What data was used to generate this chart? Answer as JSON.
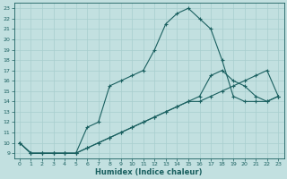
{
  "title": "",
  "xlabel": "Humidex (Indice chaleur)",
  "xlim": [
    -0.5,
    23.5
  ],
  "ylim": [
    8.5,
    23.5
  ],
  "xticks": [
    0,
    1,
    2,
    3,
    4,
    5,
    6,
    7,
    8,
    9,
    10,
    11,
    12,
    13,
    14,
    15,
    16,
    17,
    18,
    19,
    20,
    21,
    22,
    23
  ],
  "yticks": [
    9,
    10,
    11,
    12,
    13,
    14,
    15,
    16,
    17,
    18,
    19,
    20,
    21,
    22,
    23
  ],
  "bg_color": "#c2e0e0",
  "grid_color": "#a8cece",
  "line_color": "#1a6060",
  "line1_x": [
    0,
    1,
    2,
    3,
    4,
    5,
    6,
    7,
    8,
    9,
    10,
    11,
    12,
    13,
    14,
    15,
    16,
    17,
    18,
    19,
    20,
    21,
    22,
    23
  ],
  "line1_y": [
    10,
    9,
    9,
    9,
    9,
    9,
    11.5,
    12,
    15.5,
    16,
    16.5,
    17,
    19,
    21.5,
    22.5,
    23,
    22,
    21,
    18,
    14.5,
    14,
    14,
    14,
    14.5
  ],
  "line2_x": [
    0,
    1,
    2,
    3,
    4,
    5,
    6,
    7,
    8,
    9,
    10,
    11,
    12,
    13,
    14,
    15,
    16,
    17,
    18,
    19,
    20,
    21,
    22,
    23
  ],
  "line2_y": [
    10,
    9,
    9,
    9,
    9,
    9,
    9.5,
    10,
    10.5,
    11,
    11.5,
    12,
    12.5,
    13,
    13.5,
    14,
    14.5,
    16.5,
    17,
    16,
    15.5,
    14.5,
    14,
    14.5
  ],
  "line3_x": [
    0,
    1,
    2,
    3,
    4,
    5,
    6,
    7,
    8,
    9,
    10,
    11,
    12,
    13,
    14,
    15,
    16,
    17,
    18,
    19,
    20,
    21,
    22,
    23
  ],
  "line3_y": [
    10,
    9,
    9,
    9,
    9,
    9,
    9.5,
    10,
    10.5,
    11,
    11.5,
    12,
    12.5,
    13,
    13.5,
    14,
    14,
    14.5,
    15,
    15.5,
    16,
    16.5,
    17,
    14.5
  ]
}
